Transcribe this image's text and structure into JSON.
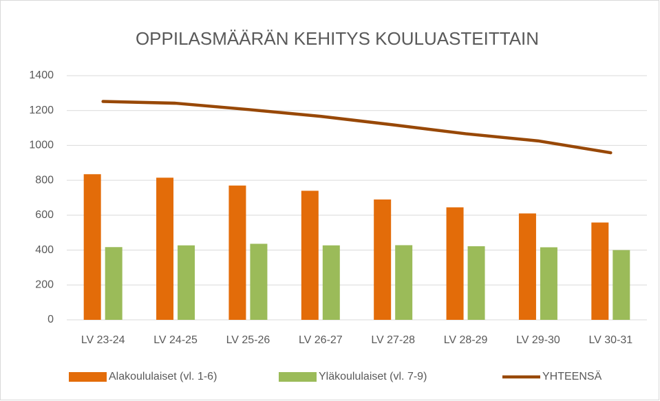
{
  "chart_data": {
    "type": "bar",
    "title": "OPPILASMÄÄRÄN KEHITYS KOULUASTEITTAIN",
    "categories": [
      "LV 23-24",
      "LV 24-25",
      "LV 25-26",
      "LV 26-27",
      "LV 27-28",
      "LV 28-29",
      "LV 29-30",
      "LV 30-31"
    ],
    "series": [
      {
        "name": "Alakoululaiset (vl. 1-6)",
        "type": "bar",
        "color": "#e36c09",
        "values": [
          835,
          815,
          770,
          740,
          690,
          645,
          610,
          558
        ]
      },
      {
        "name": "Yläkoululaiset (vl. 7-9)",
        "type": "bar",
        "color": "#9bbb59",
        "values": [
          417,
          427,
          436,
          427,
          428,
          422,
          416,
          400
        ]
      },
      {
        "name": "YHTEENSÄ",
        "type": "line",
        "color": "#984807",
        "values": [
          1252,
          1242,
          1206,
          1167,
          1118,
          1067,
          1026,
          958
        ]
      }
    ],
    "ylim": [
      0,
      1400
    ],
    "yticks": [
      0,
      200,
      400,
      600,
      800,
      1000,
      1200,
      1400
    ],
    "grid": true,
    "legend": "bottom"
  }
}
